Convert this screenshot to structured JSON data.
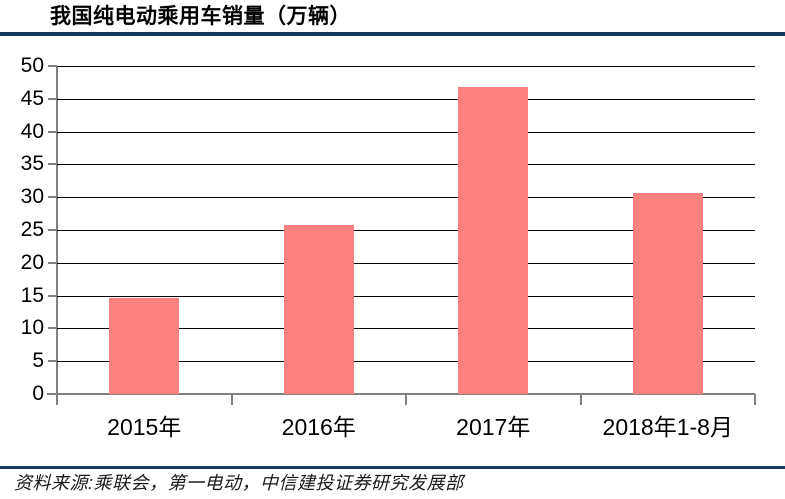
{
  "header": {
    "title": "我国纯电动乘用车销量（万辆）"
  },
  "footer": {
    "source": "资料来源:乘联会，第一电动，中信建投证券研究发展部"
  },
  "colors": {
    "bar": "#FB8181",
    "accent_rule": "#17375E",
    "axis": "#808080",
    "gridline": "#000000"
  },
  "chart_data": {
    "type": "bar",
    "title": "我国纯电动乘用车销量（万辆）",
    "categories": [
      "2015年",
      "2016年",
      "2017年",
      "2018年1-8月"
    ],
    "values": [
      14.6,
      25.7,
      46.8,
      30.7
    ],
    "xlabel": "",
    "ylabel": "",
    "ylim": [
      0,
      50
    ],
    "ytick_step": 5,
    "ytick_labels": [
      "0",
      "5",
      "10",
      "15",
      "20",
      "25",
      "30",
      "35",
      "40",
      "45",
      "50"
    ],
    "grid": "horizontal",
    "legend_position": "none",
    "bar_color": "#FB8181"
  }
}
